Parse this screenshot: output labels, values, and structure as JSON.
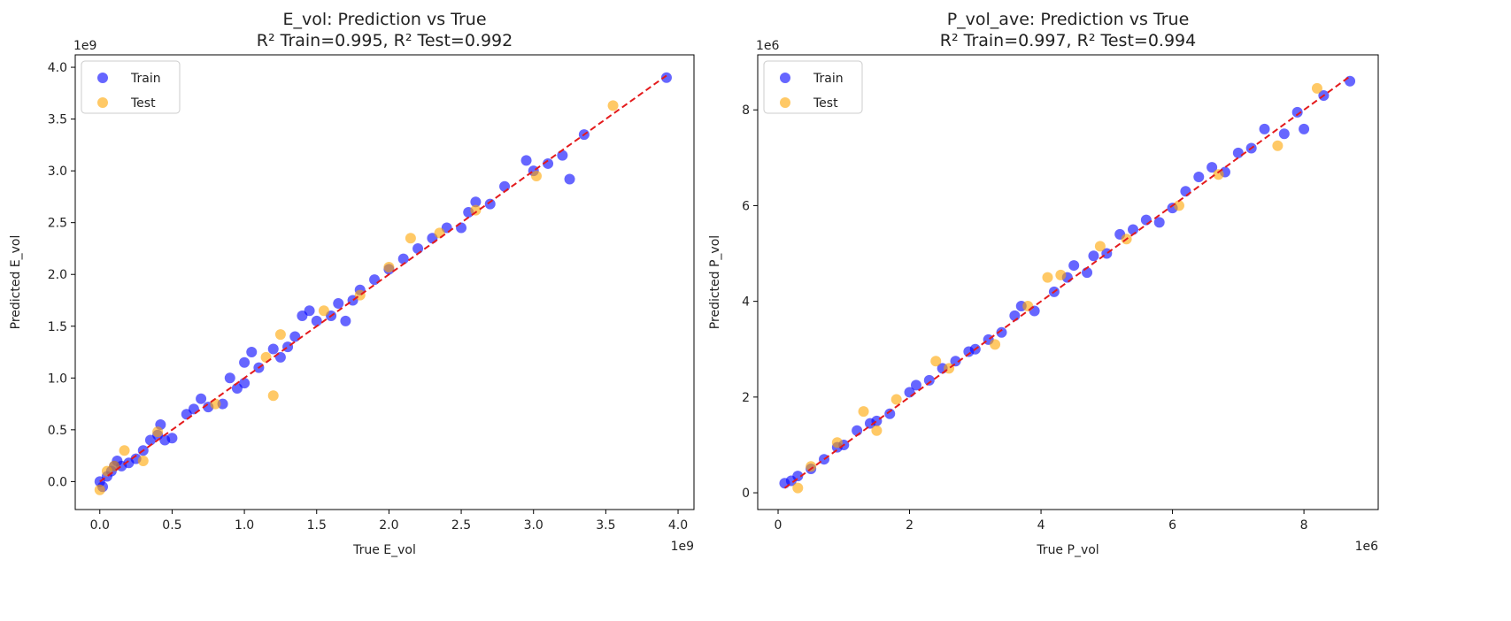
{
  "chart_data": [
    {
      "type": "scatter",
      "title": "E_vol: Prediction vs True",
      "subtitle": "R² Train=0.995, R² Test=0.992",
      "x_label": "True E_vol",
      "y_label": "Predicted E_vol",
      "x_offset": "1e9",
      "y_offset": "1e9",
      "xlim": [
        -0.17,
        4.11
      ],
      "ylim": [
        -0.27,
        4.12
      ],
      "xticks": [
        {
          "value": 0,
          "label": "0.0"
        },
        0.5,
        {
          "value": 1,
          "label": "1.0"
        },
        1.5,
        {
          "value": 2,
          "label": "2.0"
        },
        2.5,
        {
          "value": 3,
          "label": "3.0"
        },
        3.5,
        {
          "value": 4,
          "label": "4.0"
        }
      ],
      "yticks": [
        {
          "value": 0,
          "label": "0.0"
        },
        0.5,
        {
          "value": 1,
          "label": "1.0"
        },
        1.5,
        {
          "value": 2,
          "label": "2.0"
        },
        2.5,
        {
          "value": 3,
          "label": "3.0"
        },
        3.5,
        {
          "value": 4,
          "label": "4.0"
        }
      ],
      "grid": false,
      "legend": "upper left",
      "series": [
        {
          "name": "Train",
          "color": "#0000ff",
          "alpha": 0.6,
          "x": [
            0.0,
            0.02,
            0.05,
            0.08,
            0.1,
            0.12,
            0.15,
            0.2,
            0.25,
            0.3,
            0.35,
            0.4,
            0.42,
            0.45,
            0.5,
            0.6,
            0.65,
            0.7,
            0.75,
            0.85,
            0.9,
            0.95,
            1.0,
            1.0,
            1.05,
            1.1,
            1.2,
            1.25,
            1.3,
            1.35,
            1.4,
            1.45,
            1.5,
            1.6,
            1.65,
            1.7,
            1.75,
            1.8,
            1.9,
            2.0,
            2.1,
            2.2,
            2.3,
            2.4,
            2.5,
            2.55,
            2.6,
            2.7,
            2.8,
            2.95,
            3.0,
            3.1,
            3.2,
            3.25,
            3.35,
            3.92
          ],
          "values": [
            0.0,
            -0.05,
            0.05,
            0.1,
            0.15,
            0.2,
            0.15,
            0.18,
            0.22,
            0.3,
            0.4,
            0.45,
            0.55,
            0.4,
            0.42,
            0.65,
            0.7,
            0.8,
            0.72,
            0.75,
            1.0,
            0.9,
            1.15,
            0.95,
            1.25,
            1.1,
            1.28,
            1.2,
            1.3,
            1.4,
            1.6,
            1.65,
            1.55,
            1.6,
            1.72,
            1.55,
            1.75,
            1.85,
            1.95,
            2.05,
            2.15,
            2.25,
            2.35,
            2.45,
            2.45,
            2.6,
            2.7,
            2.68,
            2.85,
            3.1,
            3.0,
            3.07,
            3.15,
            2.92,
            3.35,
            3.9
          ]
        },
        {
          "name": "Test",
          "color": "#ffa500",
          "alpha": 0.6,
          "x": [
            0.0,
            0.05,
            0.1,
            0.17,
            0.3,
            0.4,
            0.8,
            1.15,
            1.2,
            1.25,
            1.55,
            1.8,
            2.0,
            2.15,
            2.35,
            2.6,
            3.02,
            3.55
          ],
          "values": [
            -0.08,
            0.1,
            0.15,
            0.3,
            0.2,
            0.48,
            0.75,
            1.2,
            0.83,
            1.42,
            1.65,
            1.8,
            2.07,
            2.35,
            2.4,
            2.62,
            2.95,
            3.63
          ]
        }
      ],
      "reference_line": {
        "color": "#e41a1c",
        "style": "dashed",
        "x": [
          0.0,
          3.92
        ],
        "y": [
          0.0,
          3.92
        ]
      }
    },
    {
      "type": "scatter",
      "title": "P_vol_ave: Prediction vs True",
      "subtitle": "R² Train=0.997, R² Test=0.994",
      "x_label": "True P_vol",
      "y_label": "Predicted P_vol",
      "x_offset": "1e6",
      "y_offset": "1e6",
      "xlim": [
        -0.31,
        9.13
      ],
      "ylim": [
        -0.35,
        9.15
      ],
      "xticks": [
        0,
        2,
        4,
        6,
        8
      ],
      "yticks": [
        0,
        2,
        4,
        6,
        8
      ],
      "grid": false,
      "legend": "upper left",
      "series": [
        {
          "name": "Train",
          "color": "#0000ff",
          "alpha": 0.6,
          "x": [
            0.1,
            0.2,
            0.3,
            0.5,
            0.7,
            0.9,
            1.0,
            1.2,
            1.4,
            1.5,
            1.7,
            2.0,
            2.1,
            2.3,
            2.5,
            2.7,
            2.9,
            3.0,
            3.2,
            3.4,
            3.6,
            3.7,
            3.9,
            4.2,
            4.4,
            4.5,
            4.7,
            4.8,
            5.0,
            5.2,
            5.4,
            5.6,
            5.8,
            6.0,
            6.2,
            6.4,
            6.6,
            6.8,
            7.0,
            7.2,
            7.4,
            7.7,
            7.9,
            8.0,
            8.3,
            8.7
          ],
          "values": [
            0.2,
            0.25,
            0.35,
            0.5,
            0.7,
            0.95,
            1.0,
            1.3,
            1.45,
            1.5,
            1.65,
            2.1,
            2.25,
            2.35,
            2.6,
            2.75,
            2.95,
            3.0,
            3.2,
            3.35,
            3.7,
            3.9,
            3.8,
            4.2,
            4.5,
            4.75,
            4.6,
            4.95,
            5.0,
            5.4,
            5.5,
            5.7,
            5.65,
            5.95,
            6.3,
            6.6,
            6.8,
            6.7,
            7.1,
            7.2,
            7.6,
            7.5,
            7.95,
            7.6,
            8.3,
            8.6
          ]
        },
        {
          "name": "Test",
          "color": "#ffa500",
          "alpha": 0.6,
          "x": [
            0.3,
            0.5,
            0.9,
            1.3,
            1.5,
            1.8,
            2.4,
            2.6,
            3.3,
            3.8,
            4.1,
            4.3,
            4.9,
            5.3,
            6.1,
            6.7,
            7.6,
            8.2
          ],
          "values": [
            0.1,
            0.55,
            1.05,
            1.7,
            1.3,
            1.95,
            2.75,
            2.6,
            3.1,
            3.9,
            4.5,
            4.55,
            5.15,
            5.3,
            6.0,
            6.65,
            7.25,
            8.45
          ]
        }
      ],
      "reference_line": {
        "color": "#e41a1c",
        "style": "dashed",
        "x": [
          0.1,
          8.7
        ],
        "y": [
          0.1,
          8.7
        ]
      }
    }
  ]
}
